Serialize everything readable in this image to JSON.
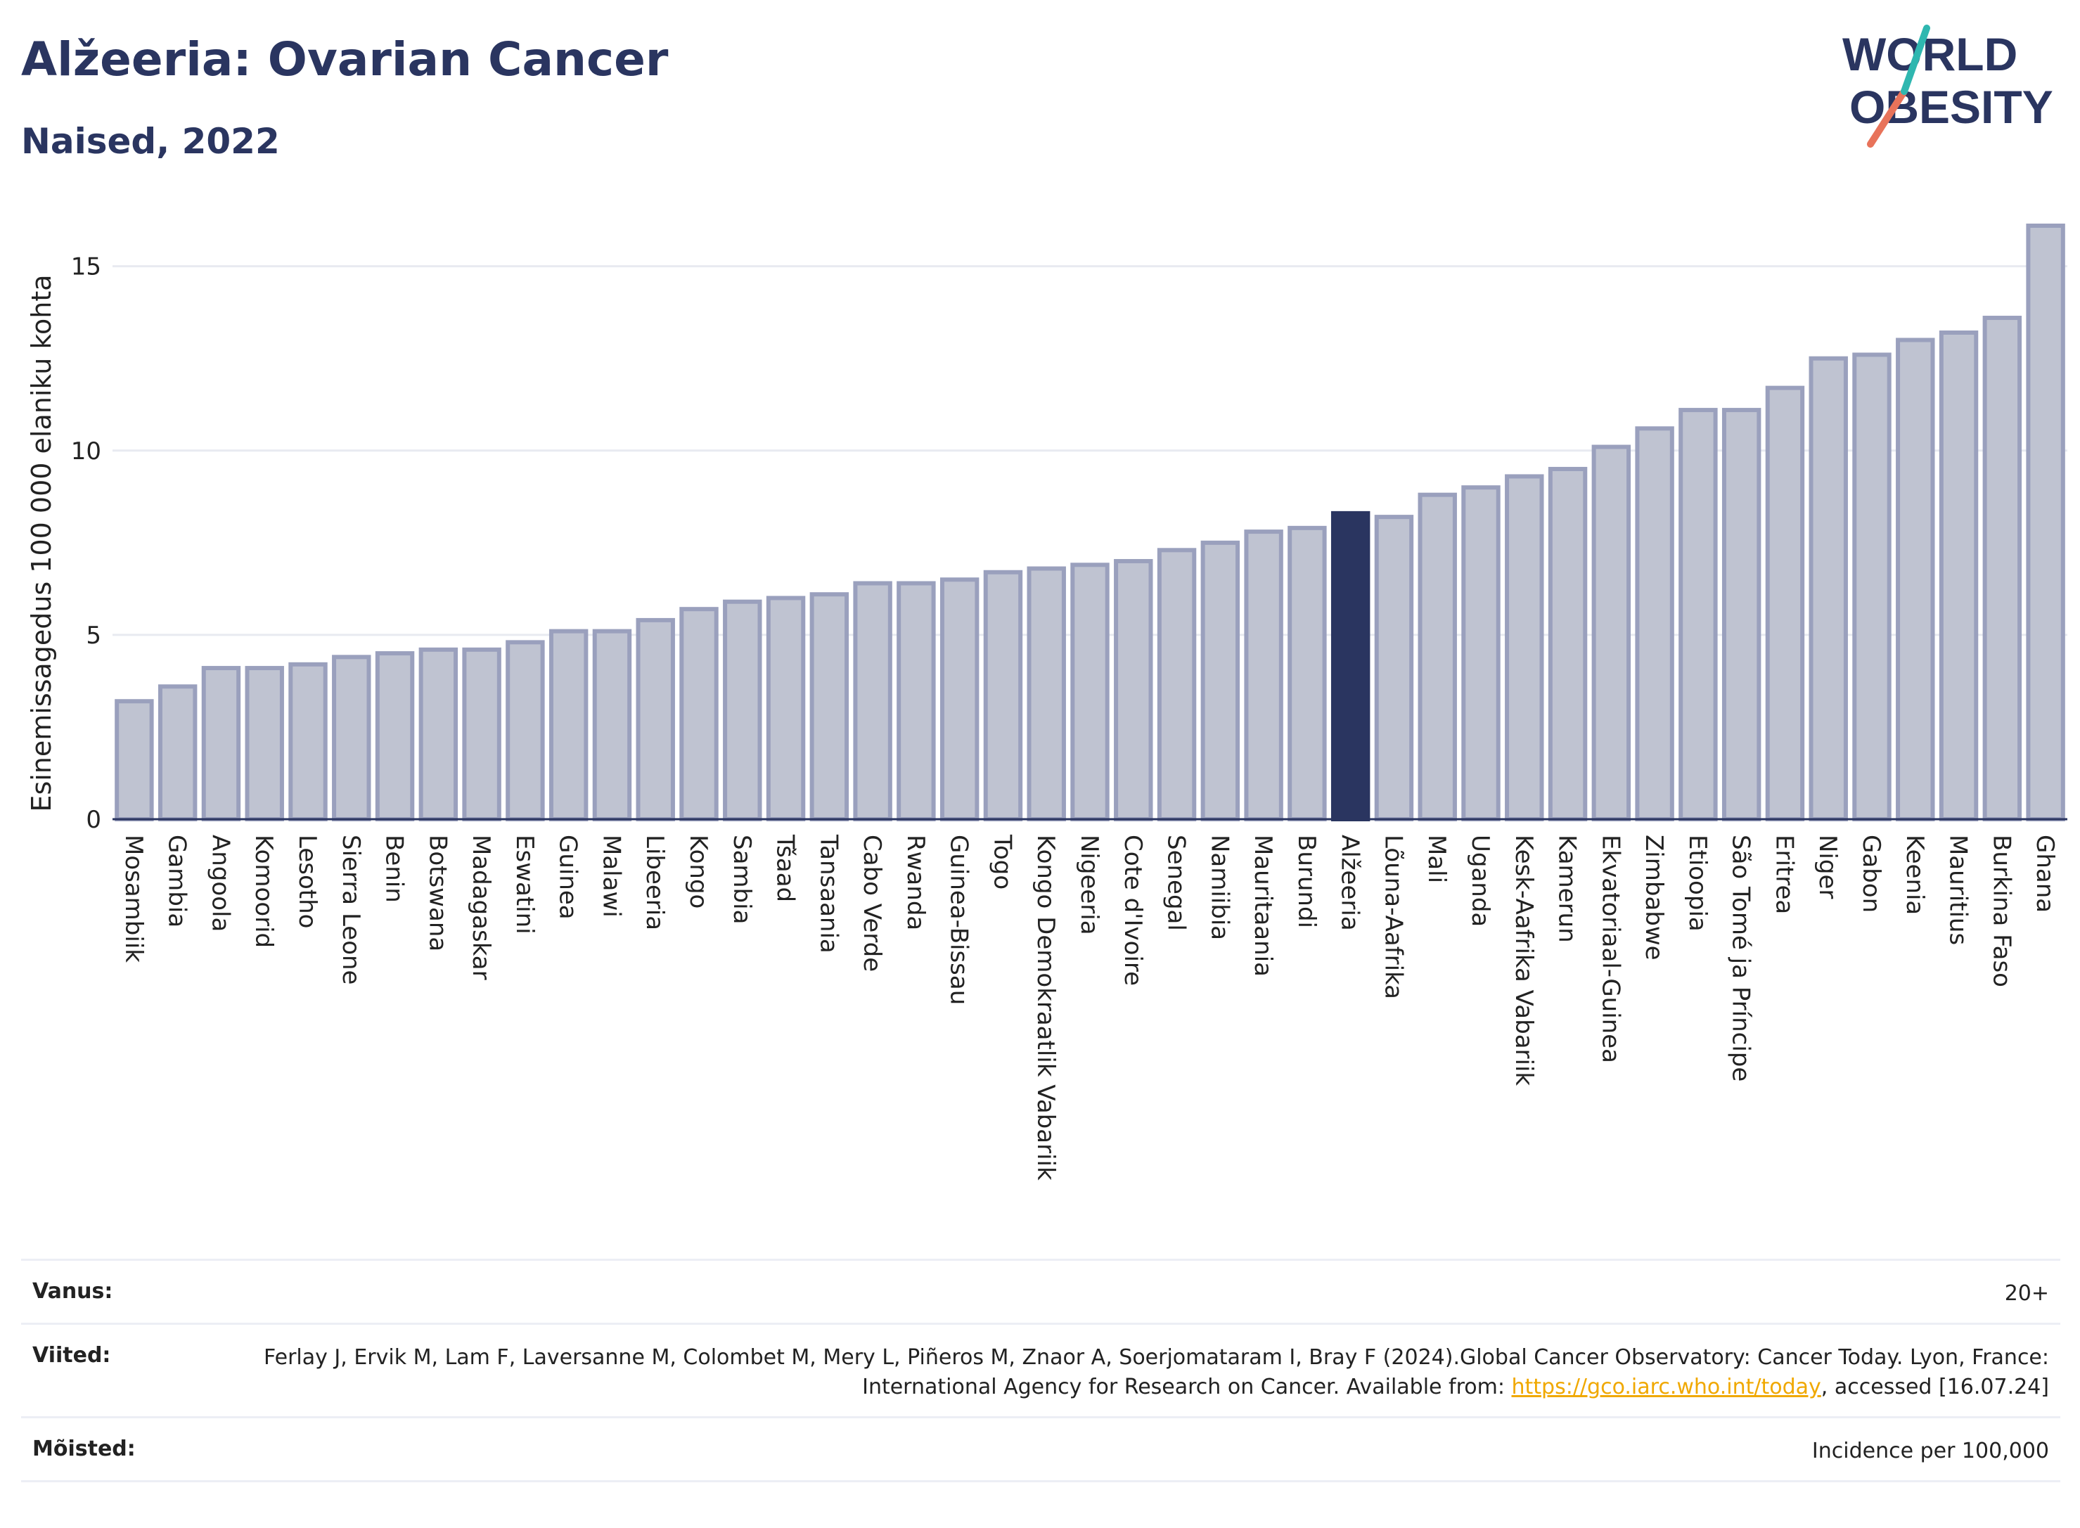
{
  "title": "Alžeeria: Ovarian Cancer",
  "subtitle": "Naised, 2022",
  "logo": {
    "line1": "WORLD",
    "line2": "OBESITY"
  },
  "colors": {
    "bar": "#bfc3d1",
    "bar_border": "#9aa0bd",
    "highlight": "#2a3560",
    "text": "#2a3560",
    "grid": "#e8eaf1"
  },
  "chart_data": {
    "type": "bar",
    "ylabel": "Esinemissagedus 100 000 elaniku kohta",
    "xlabel": "",
    "ylim": [
      0,
      16.5
    ],
    "yticks": [
      0,
      5,
      10,
      15
    ],
    "grid": true,
    "highlight": "Alžeeria",
    "categories": [
      "Mosambiik",
      "Gambia",
      "Angoola",
      "Komoorid",
      "Lesotho",
      "Sierra Leone",
      "Benin",
      "Botswana",
      "Madagaskar",
      "Eswatini",
      "Guinea",
      "Malawi",
      "Libeeria",
      "Kongo",
      "Sambia",
      "Tšaad",
      "Tansaania",
      "Cabo Verde",
      "Rwanda",
      "Guinea-Bissau",
      "Togo",
      "Kongo Demokraatlik Vabariik",
      "Nigeeria",
      "Cote d'Ivoire",
      "Senegal",
      "Namiibia",
      "Mauritaania",
      "Burundi",
      "Alžeeria",
      "Lõuna-Aafrika",
      "Mali",
      "Uganda",
      "Kesk-Aafrika Vabariik",
      "Kamerun",
      "Ekvatoriaal-Guinea",
      "Zimbabwe",
      "Etioopia",
      "São Tomé ja Príncipe",
      "Eritrea",
      "Niger",
      "Gabon",
      "Keenia",
      "Mauritius",
      "Burkina Faso",
      "Ghana"
    ],
    "values": [
      3.2,
      3.6,
      4.1,
      4.1,
      4.2,
      4.4,
      4.5,
      4.6,
      4.6,
      4.8,
      5.1,
      5.1,
      5.4,
      5.7,
      5.9,
      6.0,
      6.1,
      6.4,
      6.4,
      6.5,
      6.7,
      6.8,
      6.9,
      7.0,
      7.3,
      7.5,
      7.8,
      7.9,
      8.3,
      8.2,
      8.8,
      9.0,
      9.3,
      9.5,
      10.1,
      10.6,
      11.1,
      11.1,
      11.7,
      12.5,
      12.6,
      13.0,
      13.2,
      13.6,
      16.1
    ]
  },
  "footer": {
    "age_label": "Vanus:",
    "age_value": "20+",
    "refs_label": "Viited:",
    "refs_text_1": "Ferlay J, Ervik M, Lam F, Laversanne M, Colombet M, Mery L, Piñeros M, Znaor A, Soerjomataram I, Bray F (2024).Global Cancer Observatory: Cancer Today. Lyon, France: International Agency for Research on Cancer. Available from: ",
    "refs_link": "https://gco.iarc.who.int/today",
    "refs_text_2": ", accessed [16.07.24]",
    "defs_label": "Mõisted:",
    "defs_value": "Incidence per 100,000"
  }
}
